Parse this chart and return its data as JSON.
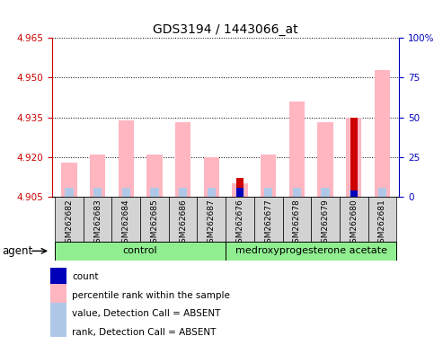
{
  "title": "GDS3194 / 1443066_at",
  "samples": [
    "GSM262682",
    "GSM262683",
    "GSM262684",
    "GSM262685",
    "GSM262686",
    "GSM262687",
    "GSM262676",
    "GSM262677",
    "GSM262678",
    "GSM262679",
    "GSM262680",
    "GSM262681"
  ],
  "ylim_left": [
    4.905,
    4.965
  ],
  "ylim_right": [
    0,
    100
  ],
  "yticks_left": [
    4.905,
    4.92,
    4.935,
    4.95,
    4.965
  ],
  "yticks_right": [
    0,
    25,
    50,
    75,
    100
  ],
  "base_value": 4.905,
  "pink_bar_tops": [
    4.918,
    4.921,
    4.934,
    4.921,
    4.933,
    4.92,
    4.91,
    4.921,
    4.941,
    4.933,
    4.935,
    4.953
  ],
  "light_blue_tops": [
    4.9085,
    4.9085,
    4.9085,
    4.9085,
    4.9085,
    4.9085,
    4.905,
    4.9085,
    4.9085,
    4.9085,
    4.9085,
    4.9085
  ],
  "red_bar_tops": [
    0,
    0,
    0,
    0,
    0,
    0,
    4.912,
    0,
    0,
    0,
    4.935,
    0
  ],
  "blue_bar_tops": [
    0,
    0,
    0,
    0,
    0,
    0,
    4.9082,
    0,
    0,
    0,
    4.9075,
    0
  ],
  "color_pink": "#ffb6c1",
  "color_light_blue": "#b0c8e8",
  "color_red": "#cc0000",
  "color_dark_blue": "#0000bb",
  "axis_color_left": "#cc0000",
  "axis_color_right": "#0000bb",
  "label_agent": "agent",
  "label_control": "control",
  "label_medroxy": "medroxyprogesterone acetate",
  "n_control": 6,
  "legend_items": [
    {
      "label": "count",
      "color": "#cc0000"
    },
    {
      "label": "percentile rank within the sample",
      "color": "#0000bb"
    },
    {
      "label": "value, Detection Call = ABSENT",
      "color": "#ffb6c1"
    },
    {
      "label": "rank, Detection Call = ABSENT",
      "color": "#b0c8e8"
    }
  ]
}
